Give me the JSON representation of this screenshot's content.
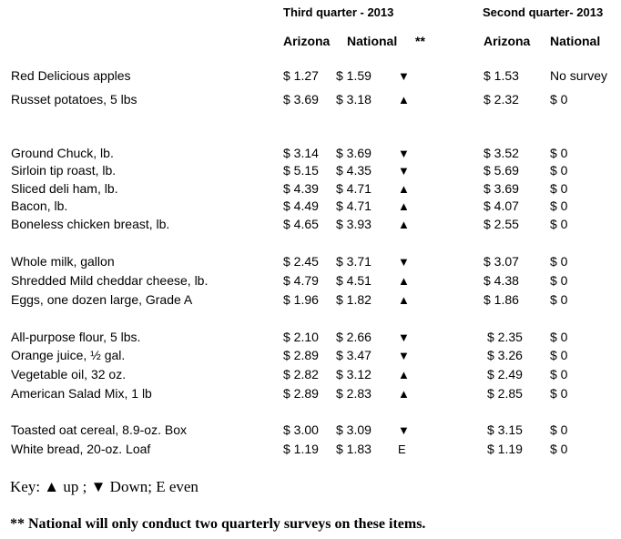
{
  "header": {
    "q3_title": "Third quarter - 2013",
    "q2_title": "Second quarter- 2013",
    "q3_arizona": "Arizona",
    "q3_national": "National",
    "q3_trend_marker": "**",
    "q2_arizona": "Arizona",
    "q2_national": "National"
  },
  "rows": [
    {
      "item": "Red Delicious apples",
      "q3_az": "$ 1.27",
      "q3_nat": "$ 1.59",
      "trend": "▼",
      "q2_az": "$ 1.53",
      "q2_nat": "No survey"
    },
    {
      "item": "Russet potatoes, 5 lbs",
      "q3_az": "$ 3.69",
      "q3_nat": "$ 3.18",
      "trend": "▲",
      "q2_az": "$ 2.32",
      "q2_nat": "$ 0"
    },
    {
      "item": "Ground Chuck, lb.",
      "q3_az": "$ 3.14",
      "q3_nat": "$ 3.69",
      "trend": "▼",
      "q2_az": "$ 3.52",
      "q2_nat": "$ 0"
    },
    {
      "item": "Sirloin tip roast, lb.",
      "q3_az": "$ 5.15",
      "q3_nat": "$ 4.35",
      "trend": "▼",
      "q2_az": "$ 5.69",
      "q2_nat": "$ 0"
    },
    {
      "item": "Sliced deli ham, lb.",
      "q3_az": "$ 4.39",
      "q3_nat": "$ 4.71",
      "trend": "▲",
      "q2_az": "$ 3.69",
      "q2_nat": "$ 0"
    },
    {
      "item": "Bacon, lb.",
      "q3_az": "$ 4.49",
      "q3_nat": "$ 4.71",
      "trend": "▲",
      "q2_az": "$ 4.07",
      "q2_nat": "$ 0"
    },
    {
      "item": "Boneless chicken breast, lb.",
      "q3_az": "$ 4.65",
      "q3_nat": "$ 3.93",
      "trend": "▲",
      "q2_az": "$ 2.55",
      "q2_nat": "$ 0"
    },
    {
      "item": "Whole milk, gallon",
      "q3_az": "$ 2.45",
      "q3_nat": "$ 3.71",
      "trend": "▼",
      "q2_az": "$ 3.07",
      "q2_nat": "$ 0"
    },
    {
      "item": "Shredded Mild cheddar cheese, lb.",
      "q3_az": "$ 4.79",
      "q3_nat": "$ 4.51",
      "trend": "▲",
      "q2_az": "$ 4.38",
      "q2_nat": "$ 0"
    },
    {
      "item": "Eggs, one dozen large, Grade A",
      "q3_az": "$ 1.96",
      "q3_nat": "$ 1.82",
      "trend": "▲",
      "q2_az": "$ 1.86",
      "q2_nat": "$ 0"
    },
    {
      "item": "All-purpose flour, 5 lbs.",
      "q3_az": "$ 2.10",
      "q3_nat": "$ 2.66",
      "trend": "▼",
      "q2_az": "$ 2.35",
      "q2_nat": "$ 0"
    },
    {
      "item": "Orange juice, ½ gal.",
      "q3_az": "$ 2.89",
      "q3_nat": "$ 3.47",
      "trend": "▼",
      "q2_az": "$ 3.26",
      "q2_nat": "$ 0"
    },
    {
      "item": "Vegetable oil, 32 oz.",
      "q3_az": "$ 2.82",
      "q3_nat": "$ 3.12",
      "trend": "▲",
      "q2_az": "$ 2.49",
      "q2_nat": "$ 0"
    },
    {
      "item": "American Salad Mix, 1 lb",
      "q3_az": "$ 2.89",
      "q3_nat": "$ 2.83",
      "trend": "▲",
      "q2_az": "$ 2.85",
      "q2_nat": "$ 0"
    },
    {
      "item": "Toasted oat cereal, 8.9-oz. Box",
      "q3_az": "$ 3.00",
      "q3_nat": "$ 3.09",
      "trend": "▼",
      "q2_az": "$ 3.15",
      "q2_nat": "$ 0"
    },
    {
      "item": "White bread, 20-oz. Loaf",
      "q3_az": "$ 1.19",
      "q3_nat": "$ 1.83",
      "trend": "E",
      "q2_az": "$ 1.19",
      "q2_nat": "$ 0"
    }
  ],
  "key_text": "Key: ▲ up ; ▼ Down;  E even",
  "footnote": "** National will only conduct two quarterly surveys on these items."
}
